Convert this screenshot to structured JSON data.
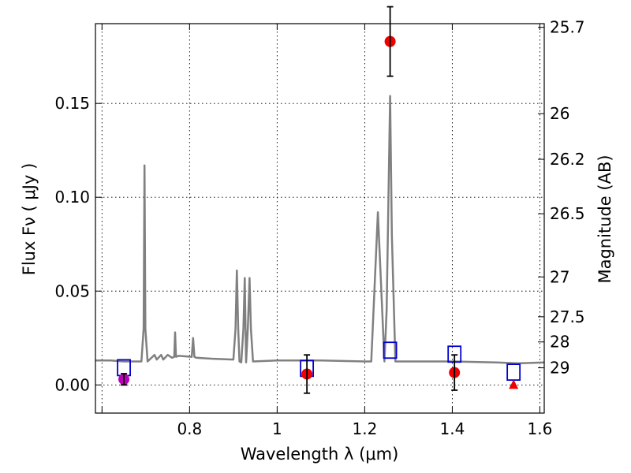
{
  "chart_data": {
    "type": "scatter",
    "xlabel": "Wavelength  λ (μm)",
    "ylabel": "Flux  Fν  ( μJy )",
    "ylabel_right": "Magnitude (AB)",
    "xlim": [
      0.585,
      1.61
    ],
    "ylim": [
      -0.015,
      0.1925
    ],
    "grid": true,
    "x_ticks": [
      {
        "value": 0.6,
        "label": ""
      },
      {
        "value": 0.8,
        "label": "0.8"
      },
      {
        "value": 1.0,
        "label": "1"
      },
      {
        "value": 1.2,
        "label": "1.2"
      },
      {
        "value": 1.4,
        "label": "1.4"
      },
      {
        "value": 1.6,
        "label": "1.6"
      }
    ],
    "y_ticks": [
      {
        "value": 0.0,
        "label": "0.00"
      },
      {
        "value": 0.05,
        "label": "0.05"
      },
      {
        "value": 0.1,
        "label": "0.10"
      },
      {
        "value": 0.15,
        "label": "0.15"
      }
    ],
    "right_ticks": [
      {
        "mag": 25.7,
        "label": "25.7"
      },
      {
        "mag": 26.0,
        "label": "26"
      },
      {
        "mag": 26.2,
        "label": "26.2"
      },
      {
        "mag": 26.5,
        "label": "26.5"
      },
      {
        "mag": 27.0,
        "label": "27"
      },
      {
        "mag": 27.5,
        "label": "27.5"
      },
      {
        "mag": 28.0,
        "label": "28"
      },
      {
        "mag": 29.0,
        "label": "29"
      }
    ],
    "model_spectrum": {
      "color": "#808080",
      "x": [
        0.585,
        0.62,
        0.65,
        0.69,
        0.695,
        0.697,
        0.699,
        0.704,
        0.72,
        0.725,
        0.735,
        0.74,
        0.75,
        0.76,
        0.765,
        0.767,
        0.769,
        0.775,
        0.805,
        0.808,
        0.811,
        0.815,
        0.85,
        0.9,
        0.905,
        0.908,
        0.911,
        0.914,
        0.918,
        0.923,
        0.926,
        0.929,
        0.933,
        0.937,
        0.94,
        0.945,
        1.0,
        1.1,
        1.2,
        1.215,
        1.23,
        1.245,
        1.25,
        1.258,
        1.262,
        1.27,
        1.3,
        1.4,
        1.5,
        1.55,
        1.61
      ],
      "y": [
        0.013,
        0.013,
        0.0125,
        0.0125,
        0.03,
        0.117,
        0.03,
        0.0125,
        0.016,
        0.0135,
        0.016,
        0.0135,
        0.016,
        0.0145,
        0.015,
        0.028,
        0.015,
        0.0155,
        0.015,
        0.025,
        0.015,
        0.0145,
        0.014,
        0.0135,
        0.03,
        0.061,
        0.03,
        0.0125,
        0.012,
        0.03,
        0.057,
        0.012,
        0.03,
        0.057,
        0.03,
        0.0125,
        0.013,
        0.013,
        0.0125,
        0.0125,
        0.092,
        0.0125,
        0.04,
        0.154,
        0.08,
        0.0125,
        0.0125,
        0.0125,
        0.012,
        0.0115,
        0.012
      ]
    },
    "model_photometry": {
      "color": "#0000cc",
      "marker": "open-square",
      "x": [
        0.65,
        1.068,
        1.258,
        1.405,
        1.54
      ],
      "y": [
        0.0092,
        0.0088,
        0.0185,
        0.0164,
        0.0068
      ]
    },
    "observed": [
      {
        "x": 0.65,
        "y": 0.003,
        "err": 0.003,
        "marker": "circle",
        "color": "#bb00bb"
      },
      {
        "x": 1.068,
        "y": 0.0058,
        "err": 0.0102,
        "marker": "circle",
        "color": "#ee0000"
      },
      {
        "x": 1.258,
        "y": 0.183,
        "err": 0.0185,
        "marker": "circle",
        "color": "#ee0000"
      },
      {
        "x": 1.405,
        "y": 0.0066,
        "err": 0.0094,
        "marker": "circle",
        "color": "#ee0000"
      },
      {
        "x": 1.54,
        "y": 0.0,
        "err": 0,
        "marker": "triangle",
        "color": "#ee0000"
      }
    ]
  }
}
